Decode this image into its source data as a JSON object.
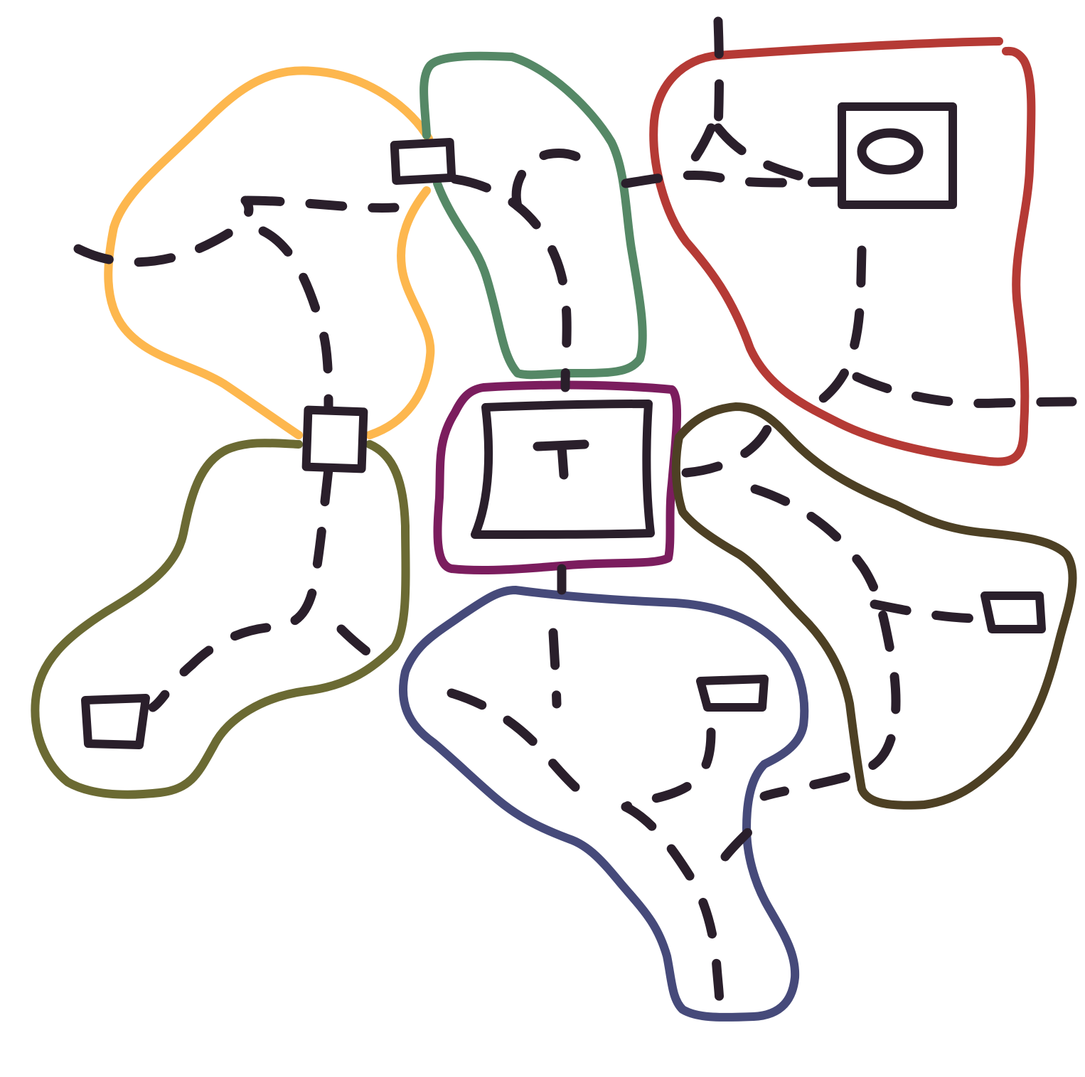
{
  "colors": {
    "background": "#ffffff",
    "ink": "#2a1f2b",
    "region_yellow": "#fdb74e",
    "region_green": "#558866",
    "region_red": "#b53a35",
    "region_purple": "#7b1d5e",
    "region_olive": "#6b6a33",
    "region_brown": "#4d4024",
    "region_blue": "#464a7a"
  },
  "diagram": {
    "regions": [
      {
        "id": "yellow-region",
        "color": "region_yellow"
      },
      {
        "id": "green-region",
        "color": "region_green"
      },
      {
        "id": "red-region",
        "color": "region_red"
      },
      {
        "id": "purple-region",
        "color": "region_purple"
      },
      {
        "id": "olive-region",
        "color": "region_olive"
      },
      {
        "id": "brown-region",
        "color": "region_brown"
      },
      {
        "id": "blue-region",
        "color": "region_blue"
      }
    ],
    "nodes": [
      {
        "id": "top-left-junction-node",
        "kind": "square"
      },
      {
        "id": "left-junction-node",
        "kind": "square"
      },
      {
        "id": "red-circle-node",
        "kind": "square-with-circle"
      },
      {
        "id": "central-t-node",
        "kind": "square-with-t"
      },
      {
        "id": "olive-end-node",
        "kind": "square"
      },
      {
        "id": "blue-end-node",
        "kind": "square"
      },
      {
        "id": "brown-end-node",
        "kind": "square"
      }
    ]
  }
}
